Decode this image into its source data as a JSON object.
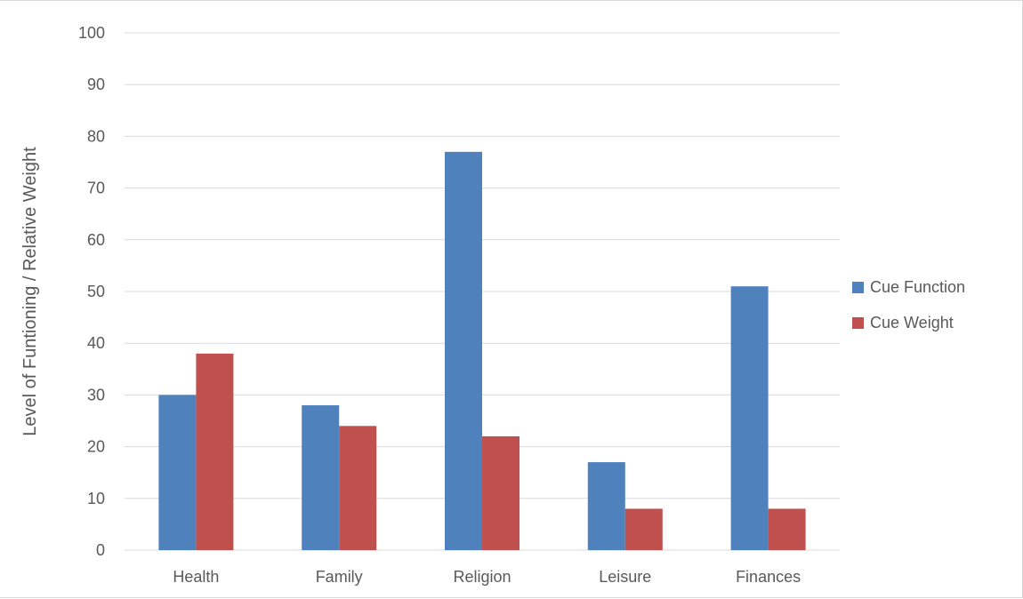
{
  "chart_data": {
    "type": "bar",
    "title": "",
    "xlabel": "",
    "ylabel": "Level of Funtioning / Relative Weight",
    "categories": [
      "Health",
      "Family",
      "Religion",
      "Leisure",
      "Finances"
    ],
    "series": [
      {
        "name": "Cue Function",
        "values": [
          30,
          28,
          77,
          17,
          51
        ],
        "color": "#4F81BD"
      },
      {
        "name": "Cue Weight",
        "values": [
          38,
          24,
          22,
          8,
          8
        ],
        "color": "#C0504D"
      }
    ],
    "ylim": [
      0,
      100
    ],
    "yticks": [
      0,
      10,
      20,
      30,
      40,
      50,
      60,
      70,
      80,
      90,
      100
    ],
    "grid": true,
    "legend_position": "right"
  }
}
